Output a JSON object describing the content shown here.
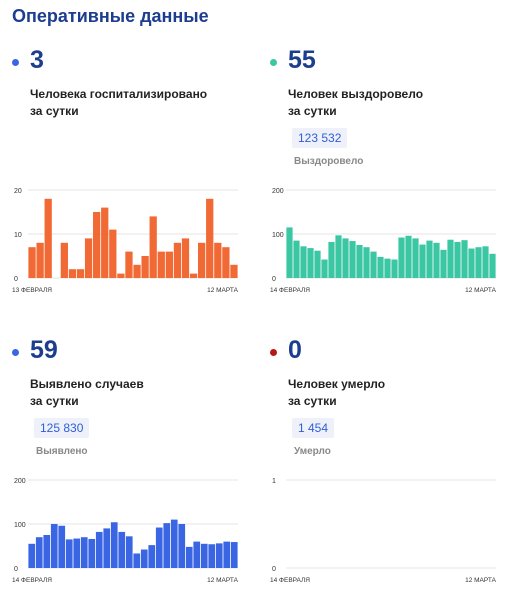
{
  "page": {
    "title": "Оперативные данные"
  },
  "panels": {
    "hosp": {
      "value": "3",
      "desc1": "Человека госпитализировано",
      "desc2": "за сутки",
      "dot_color": "#3b66e3"
    },
    "recovered": {
      "value": "55",
      "desc1": "Человек выздоровело",
      "desc2": "за сутки",
      "total": "123 532",
      "total_label": "Выздоровело",
      "dot_color": "#3cc7a4"
    },
    "cases": {
      "value": "59",
      "desc1": "Выявлено случаев",
      "desc2": "за сутки",
      "total": "125 830",
      "total_label": "Выявлено",
      "dot_color": "#3b66e3"
    },
    "deaths": {
      "value": "0",
      "desc1": "Человек умерло",
      "desc2": "за сутки",
      "total": "1 454",
      "total_label": "Умерло",
      "dot_color": "#b31b1b"
    }
  },
  "chart_data": [
    {
      "type": "bar",
      "color": "#f16a35",
      "ylim": [
        0,
        20
      ],
      "yticks": [
        0,
        10,
        20
      ],
      "x_start_label": "13 ФЕВРАЛЯ",
      "x_end_label": "12 МАРТА",
      "values": [
        7,
        8,
        18,
        0,
        8,
        2,
        2,
        9,
        15,
        16,
        11,
        1,
        6,
        3,
        5,
        14,
        6,
        6,
        8,
        9,
        1,
        8,
        18,
        8,
        7,
        3
      ],
      "grid": true
    },
    {
      "type": "bar",
      "color": "#3cc7a4",
      "ylim": [
        0,
        200
      ],
      "yticks": [
        0,
        100,
        200
      ],
      "x_start_label": "14 ФЕВРАЛЯ",
      "x_end_label": "12 МАРТА",
      "values": [
        115,
        85,
        72,
        68,
        62,
        42,
        82,
        97,
        90,
        84,
        75,
        70,
        60,
        48,
        44,
        42,
        92,
        96,
        90,
        76,
        85,
        80,
        64,
        87,
        82,
        86,
        67,
        70,
        72,
        55
      ],
      "grid": true
    },
    {
      "type": "bar",
      "color": "#3b66e3",
      "ylim": [
        0,
        200
      ],
      "yticks": [
        0,
        100,
        200
      ],
      "x_start_label": "14 ФЕВРАЛЯ",
      "x_end_label": "12 МАРТА",
      "values": [
        55,
        70,
        75,
        100,
        96,
        65,
        67,
        70,
        66,
        82,
        90,
        104,
        82,
        72,
        33,
        42,
        52,
        92,
        102,
        110,
        100,
        48,
        60,
        55,
        54,
        56,
        60,
        59
      ],
      "grid": true
    },
    {
      "type": "bar",
      "color": "#b31b1b",
      "ylim": [
        0,
        1
      ],
      "yticks": [
        0,
        1
      ],
      "x_start_label": "14 ФЕВРАЛЯ",
      "x_end_label": "12 МАРТА",
      "values": [],
      "grid": true
    }
  ]
}
